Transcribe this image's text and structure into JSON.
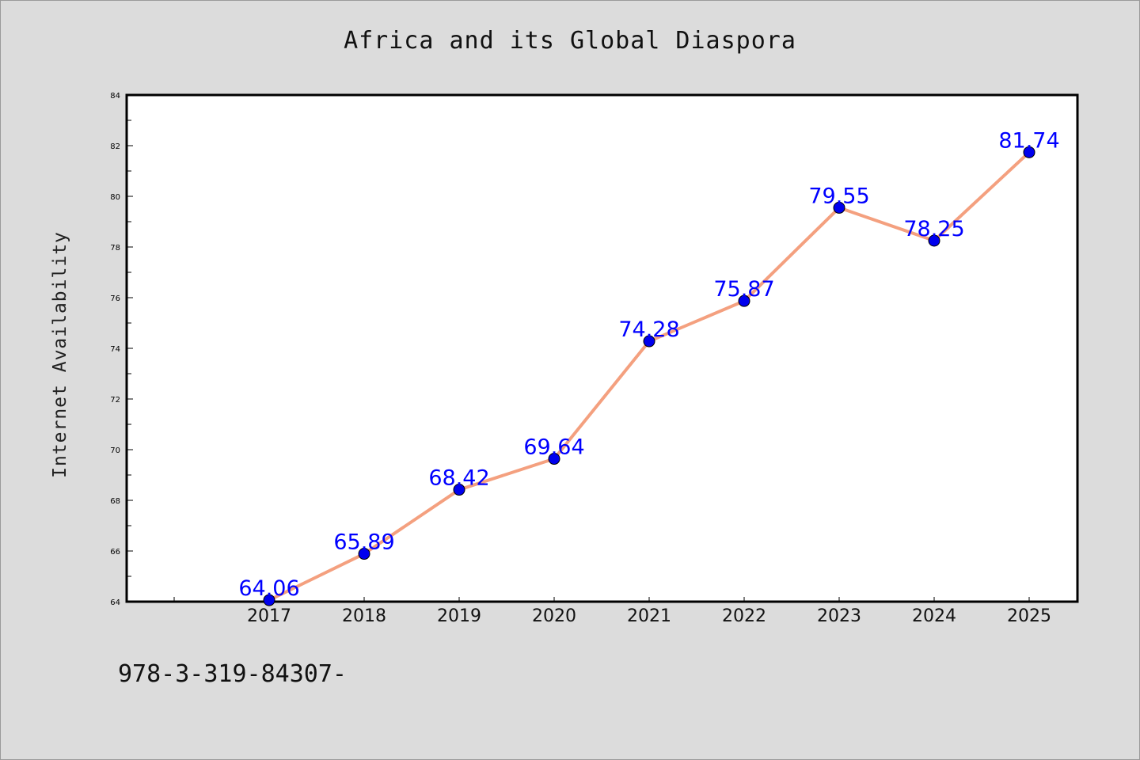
{
  "chart_data": {
    "type": "line",
    "title": "Africa and its Global Diaspora",
    "xlabel": "",
    "ylabel": "Internet Availability",
    "categories": [
      "2017",
      "2018",
      "2019",
      "2020",
      "2021",
      "2022",
      "2023",
      "2024",
      "2025"
    ],
    "values": [
      64.06,
      65.89,
      68.42,
      69.64,
      74.28,
      75.87,
      79.55,
      78.25,
      81.74
    ],
    "data_labels": [
      "64.06",
      "65.89",
      "68.42",
      "69.64",
      "74.28",
      "75.87",
      "79.55",
      "78.25",
      "81.74"
    ],
    "ylim": [
      64,
      84
    ],
    "yticks": [
      64,
      66,
      68,
      70,
      72,
      74,
      76,
      78,
      80,
      82,
      84
    ],
    "grid": false,
    "legend": "none",
    "line_color": "#f4a07f",
    "marker_color": "#0000ee",
    "label_color": "#0000ff",
    "background_color": "#dcdcdc",
    "plot_background": "#ffffff"
  },
  "footer": {
    "text": "978-3-319-84307-"
  }
}
